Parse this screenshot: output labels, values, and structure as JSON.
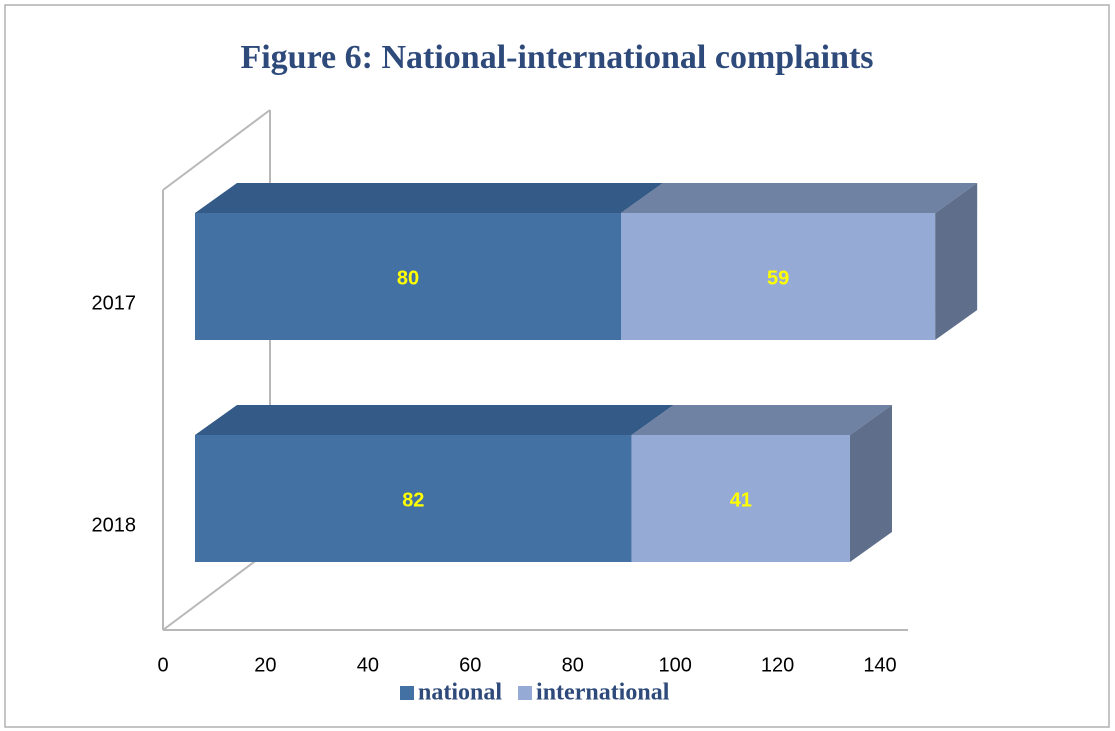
{
  "chart_data": {
    "type": "bar",
    "orientation": "horizontal",
    "stacked": true,
    "three_d": true,
    "title": "Figure 6: National-international complaints",
    "categories": [
      "2017",
      "2018"
    ],
    "series": [
      {
        "name": "national",
        "color": "#4471a4",
        "values": [
          80,
          82
        ]
      },
      {
        "name": "international",
        "color": "#95aad4",
        "values": [
          59,
          41
        ]
      }
    ],
    "xlim": [
      0,
      140
    ],
    "xticks": [
      0,
      20,
      40,
      60,
      80,
      100,
      120,
      140
    ],
    "legend": "bottom"
  }
}
